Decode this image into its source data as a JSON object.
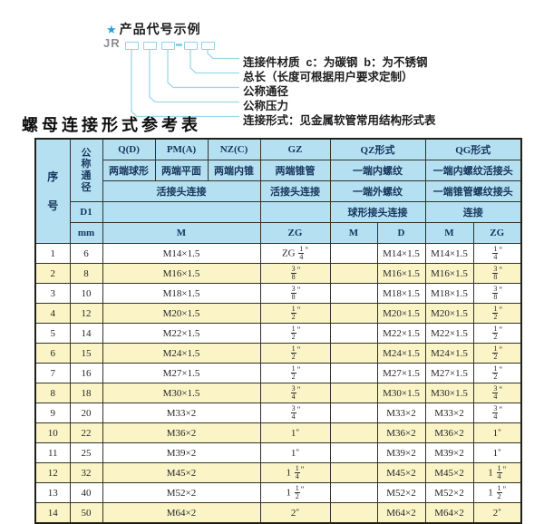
{
  "diagram": {
    "star": "★",
    "title": "产品代号示例",
    "code_prefix": "JR",
    "labels": [
      "连接件材质  c：为碳钢  b：为不锈钢",
      "总长（长度可根据用户要求定制）",
      "公称通径",
      "公称压力",
      "连接形式：见金属软管常用结构形式表"
    ]
  },
  "table": {
    "title": "螺母连接形式参考表",
    "header": {
      "serial": "序号",
      "diameter": "公称通径",
      "d1": "D1",
      "mm": "mm",
      "groups": [
        "Q(D)",
        "PM(A)",
        "NZ(C)",
        "GZ",
        "QZ形式",
        "QG形式"
      ],
      "subtitles": [
        "两端球形",
        "两端平面",
        "两端内锥",
        "两端锥管",
        "一端内螺纹",
        "一端内螺纹活接头"
      ],
      "row3": [
        "活接头连接",
        "活接头连接",
        "一端外螺纹",
        "一端锥管螺纹接头"
      ],
      "row4": [
        "球形接头连接",
        "连接"
      ],
      "units": [
        "M",
        "ZG",
        "M",
        "D",
        "M",
        "ZG"
      ]
    },
    "rows": [
      {
        "no": "1",
        "mm": "6",
        "m": "M14×1.5",
        "gz_zg": "ZG 1/4\"",
        "qz_m": "",
        "qz_d": "M14×1.5",
        "qg_m": "M14×1.5",
        "qg_zg": "1/4\""
      },
      {
        "no": "2",
        "mm": "8",
        "m": "M16×1.5",
        "gz_zg": "3/8\"",
        "qz_m": "",
        "qz_d": "M16×1.5",
        "qg_m": "M16×1.5",
        "qg_zg": "3/8\""
      },
      {
        "no": "3",
        "mm": "10",
        "m": "M18×1.5",
        "gz_zg": "3/8\"",
        "qz_m": "",
        "qz_d": "M18×1.5",
        "qg_m": "M18×1.5",
        "qg_zg": "3/8\""
      },
      {
        "no": "4",
        "mm": "12",
        "m": "M20×1.5",
        "gz_zg": "1/2\"",
        "qz_m": "",
        "qz_d": "M20×1.5",
        "qg_m": "M20×1.5",
        "qg_zg": "1/2\""
      },
      {
        "no": "5",
        "mm": "14",
        "m": "M22×1.5",
        "gz_zg": "1/2\"",
        "qz_m": "",
        "qz_d": "M22×1.5",
        "qg_m": "M22×1.5",
        "qg_zg": "1/2\""
      },
      {
        "no": "6",
        "mm": "15",
        "m": "M24×1.5",
        "gz_zg": "1/2\"",
        "qz_m": "",
        "qz_d": "M24×1.5",
        "qg_m": "M24×1.5",
        "qg_zg": "1/2\""
      },
      {
        "no": "7",
        "mm": "16",
        "m": "M27×1.5",
        "gz_zg": "1/2\"",
        "qz_m": "",
        "qz_d": "M27×1.5",
        "qg_m": "M27×1.5",
        "qg_zg": "1/2\""
      },
      {
        "no": "8",
        "mm": "18",
        "m": "M30×1.5",
        "gz_zg": "3/4\"",
        "qz_m": "",
        "qz_d": "M30×1.5",
        "qg_m": "M30×1.5",
        "qg_zg": "3/4\""
      },
      {
        "no": "9",
        "mm": "20",
        "m": "M33×2",
        "gz_zg": "3/4\"",
        "qz_m": "",
        "qz_d": "M33×2",
        "qg_m": "M33×2",
        "qg_zg": "3/4\""
      },
      {
        "no": "10",
        "mm": "22",
        "m": "M36×2",
        "gz_zg": "1\"",
        "qz_m": "",
        "qz_d": "M36×2",
        "qg_m": "M36×2",
        "qg_zg": "1\""
      },
      {
        "no": "11",
        "mm": "25",
        "m": "M39×2",
        "gz_zg": "1\"",
        "qz_m": "",
        "qz_d": "M39×2",
        "qg_m": "M39×2",
        "qg_zg": "1\""
      },
      {
        "no": "12",
        "mm": "32",
        "m": "M45×2",
        "gz_zg": "1 1/4\"",
        "qz_m": "",
        "qz_d": "M45×2",
        "qg_m": "M45×2",
        "qg_zg": "1 1/4\""
      },
      {
        "no": "13",
        "mm": "40",
        "m": "M52×2",
        "gz_zg": "1 1/2\"",
        "qz_m": "",
        "qz_d": "M52×2",
        "qg_m": "M52×2",
        "qg_zg": "1 1/2\""
      },
      {
        "no": "14",
        "mm": "50",
        "m": "M64×2",
        "gz_zg": "2\"",
        "qz_m": "",
        "qz_d": "M64×2",
        "qg_m": "M64×2",
        "qg_zg": "2\""
      }
    ]
  },
  "colors": {
    "accent_blue": "#2a9fd6",
    "code_box_blue": "#8fd2e8",
    "header_bg": "#b5e0f2",
    "header_text": "#16365c",
    "row_yellow": "#faf4c6",
    "row_white": "#ffffff",
    "border_dark": "#33332a"
  }
}
